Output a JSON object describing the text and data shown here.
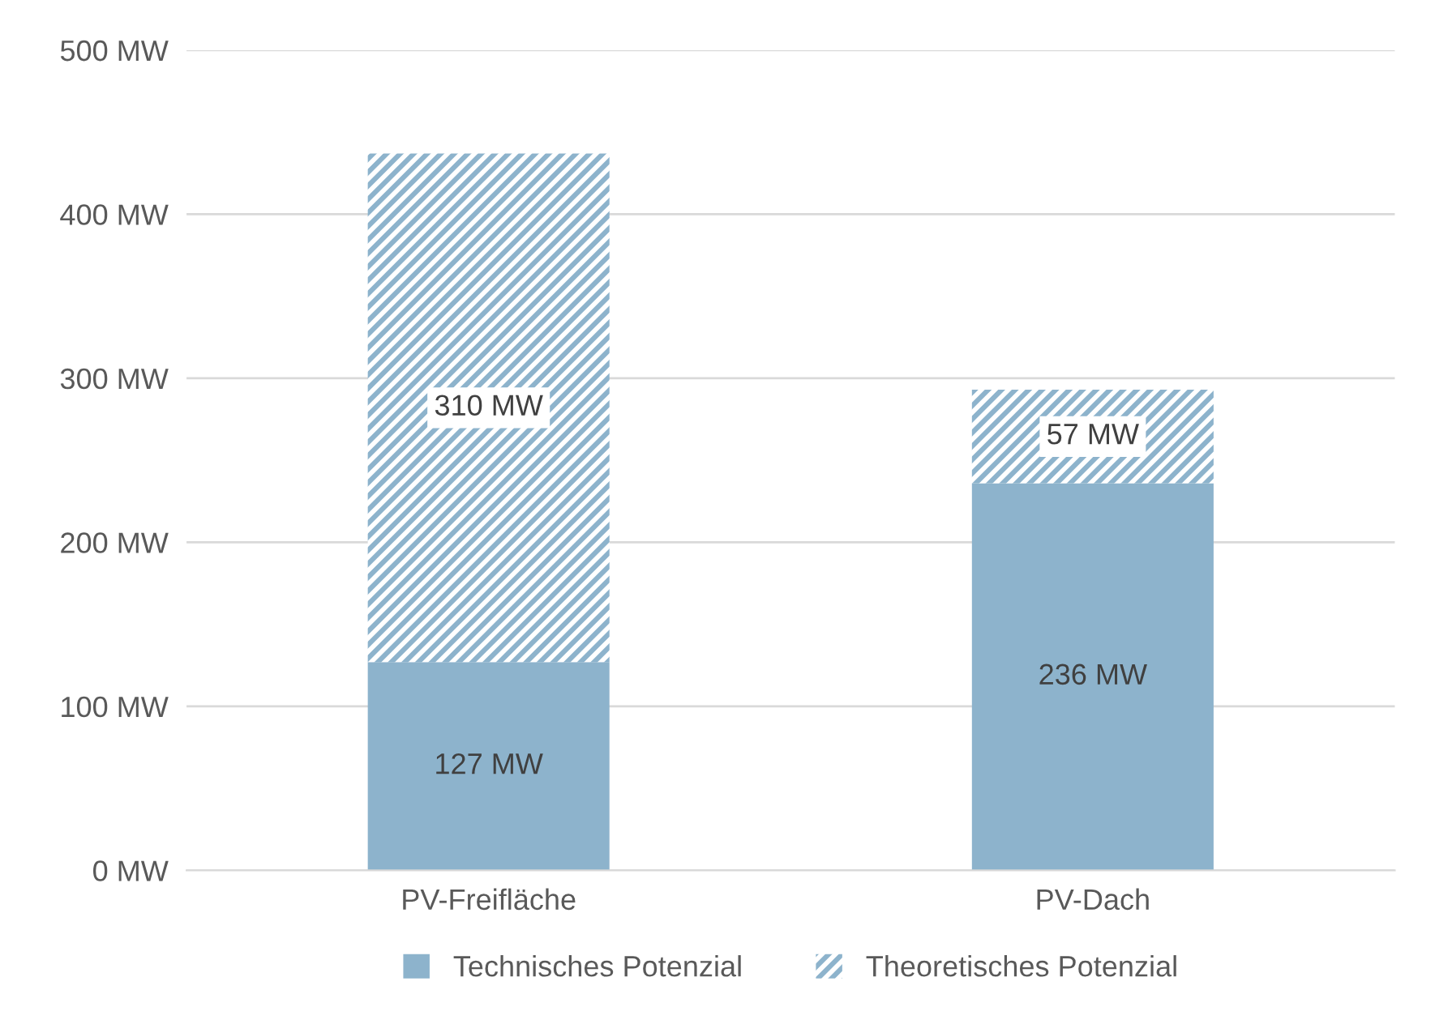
{
  "chart_data": {
    "type": "bar",
    "stacked": true,
    "categories": [
      "PV-Freifläche",
      "PV-Dach"
    ],
    "series": [
      {
        "name": "Technisches Potenzial",
        "color": "#8db3cc",
        "values": [
          127,
          236
        ],
        "value_labels": [
          "127 MW",
          "236 MW"
        ]
      },
      {
        "name": "Theoretisches Potenzial",
        "color": "#8db3cc",
        "values": [
          310,
          57
        ],
        "value_labels": [
          "310 MW",
          "57 MW"
        ]
      }
    ],
    "ylim": [
      0,
      500
    ],
    "yticks": [
      {
        "value": 0,
        "label": "0 MW"
      },
      {
        "value": 100,
        "label": "100 MW"
      },
      {
        "value": 200,
        "label": "200 MW"
      },
      {
        "value": 300,
        "label": "300 MW"
      },
      {
        "value": 400,
        "label": "400 MW"
      },
      {
        "value": 500,
        "label": "500 MW"
      }
    ],
    "grid": "y",
    "legend": "bottom"
  }
}
